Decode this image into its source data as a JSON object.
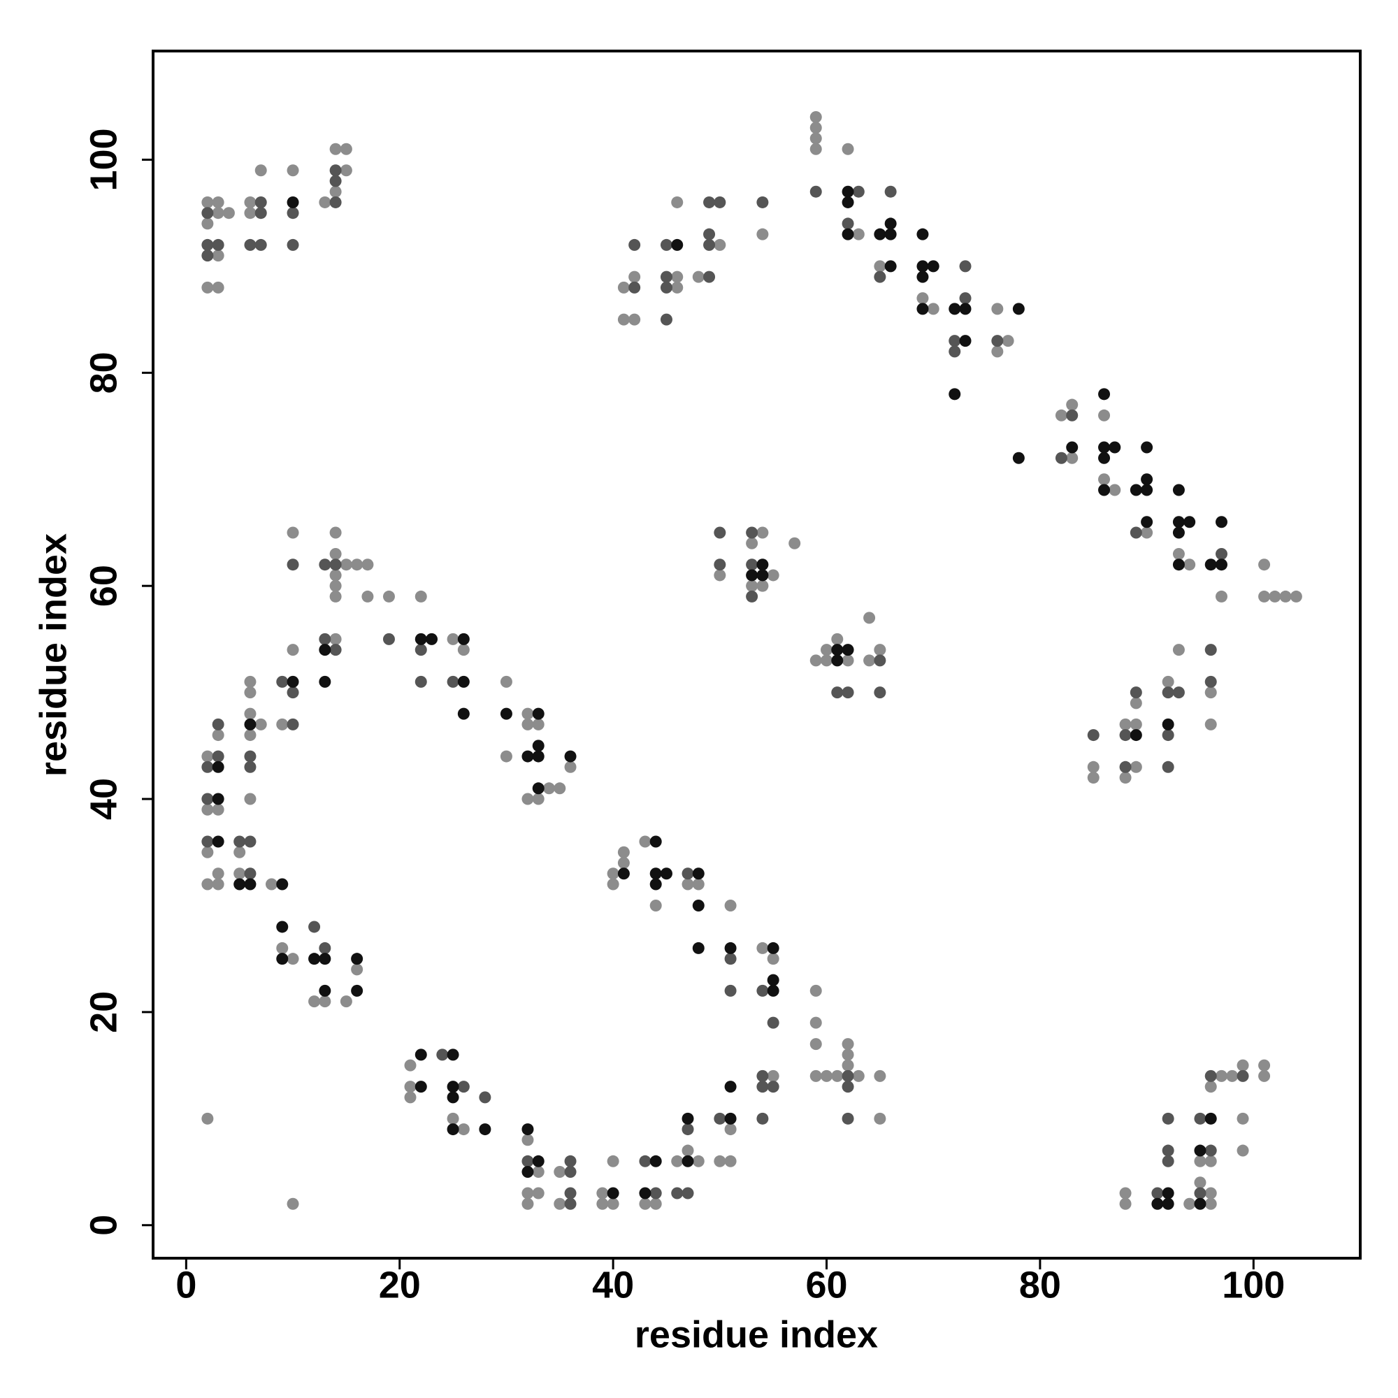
{
  "chart_data": {
    "type": "scatter",
    "x_label": "residue index",
    "y_label": "residue index",
    "xlim": [
      -3.1,
      110
    ],
    "ylim": [
      -3.1,
      110.2
    ],
    "xticks": [
      0,
      20,
      40,
      60,
      80,
      100
    ],
    "yticks": [
      0,
      20,
      40,
      60,
      80,
      100
    ],
    "grid": false,
    "series": [
      {
        "color": "#8c8c8c",
        "x": [
          2,
          3,
          3,
          4,
          2,
          3,
          2,
          3,
          6,
          6,
          7,
          10,
          13,
          14,
          15,
          14,
          15,
          41,
          42,
          41,
          42,
          46,
          46,
          46,
          50,
          48,
          54,
          59,
          59,
          59,
          59,
          62,
          63,
          65,
          69,
          70,
          76,
          77,
          76,
          82,
          83,
          83,
          86,
          86,
          87,
          90,
          93,
          94,
          97,
          101,
          101,
          102,
          103,
          104,
          50,
          54,
          53,
          53,
          54,
          55,
          57,
          59,
          60,
          60,
          61,
          62,
          64,
          64,
          65,
          85,
          85,
          88,
          89,
          89,
          89,
          88,
          92,
          93,
          96,
          96,
          10,
          14,
          14,
          14,
          14,
          14,
          15,
          16,
          17,
          17,
          19,
          22,
          14,
          10,
          25,
          26,
          6,
          6,
          6,
          7,
          6,
          9,
          3,
          2,
          2,
          3,
          6,
          2,
          5,
          3,
          2,
          3,
          5,
          8,
          9,
          10,
          16,
          12,
          13,
          15,
          30,
          32,
          32,
          33,
          30,
          36,
          34,
          35,
          32,
          33,
          40,
          41,
          41,
          40,
          43,
          44,
          47,
          48,
          51,
          54,
          55,
          59,
          59,
          59,
          59,
          60,
          61,
          62,
          62,
          62,
          63,
          65,
          65,
          55,
          21,
          21,
          21,
          25,
          26,
          32,
          33,
          35,
          32,
          33,
          32,
          35,
          39,
          39,
          40,
          40,
          43,
          44,
          46,
          48,
          47,
          51,
          50,
          51,
          88,
          88,
          94,
          95,
          96,
          96,
          95,
          96,
          96,
          97,
          98,
          99,
          99,
          99,
          101,
          101,
          2,
          10
        ],
        "y": [
          96,
          96,
          95,
          95,
          94,
          91,
          88,
          88,
          96,
          95,
          99,
          99,
          96,
          97,
          99,
          101,
          101,
          88,
          89,
          85,
          85,
          89,
          88,
          96,
          92,
          89,
          93,
          104,
          103,
          102,
          101,
          101,
          93,
          90,
          87,
          86,
          86,
          83,
          82,
          76,
          77,
          72,
          76,
          70,
          69,
          65,
          63,
          62,
          59,
          62,
          59,
          59,
          59,
          59,
          61,
          65,
          64,
          60,
          60,
          61,
          64,
          53,
          54,
          53,
          55,
          53,
          57,
          53,
          54,
          43,
          42,
          47,
          47,
          49,
          43,
          42,
          51,
          54,
          50,
          47,
          65,
          65,
          63,
          61,
          60,
          59,
          62,
          62,
          62,
          59,
          59,
          59,
          55,
          54,
          55,
          54,
          51,
          50,
          48,
          47,
          46,
          47,
          46,
          44,
          39,
          39,
          40,
          35,
          35,
          33,
          32,
          32,
          33,
          32,
          26,
          25,
          24,
          21,
          21,
          21,
          51,
          48,
          47,
          47,
          44,
          43,
          41,
          41,
          40,
          40,
          33,
          34,
          35,
          32,
          36,
          30,
          32,
          32,
          30,
          26,
          25,
          22,
          19,
          17,
          14,
          14,
          14,
          15,
          16,
          17,
          14,
          14,
          10,
          14,
          15,
          13,
          12,
          10,
          9,
          8,
          5,
          5,
          3,
          3,
          2,
          2,
          3,
          2,
          2,
          6,
          2,
          2,
          6,
          6,
          7,
          9,
          6,
          6,
          3,
          2,
          2,
          4,
          3,
          2,
          6,
          6,
          13,
          14,
          14,
          15,
          10,
          7,
          15,
          14,
          10,
          2
        ]
      },
      {
        "color": "#555555",
        "x": [
          2,
          2,
          3,
          2,
          7,
          7,
          6,
          7,
          10,
          10,
          14,
          14,
          14,
          42,
          42,
          45,
          45,
          45,
          45,
          49,
          50,
          49,
          49,
          49,
          54,
          59,
          63,
          62,
          66,
          65,
          73,
          73,
          72,
          72,
          76,
          83,
          82,
          89,
          97,
          50,
          50,
          53,
          53,
          53,
          61,
          62,
          65,
          65,
          85,
          88,
          89,
          88,
          92,
          93,
          92,
          92,
          96,
          96,
          10,
          13,
          14,
          13,
          14,
          19,
          22,
          22,
          25,
          9,
          10,
          10,
          3,
          3,
          2,
          6,
          6,
          2,
          2,
          5,
          6,
          6,
          12,
          13,
          47,
          51,
          51,
          54,
          55,
          62,
          62,
          62,
          54,
          54,
          55,
          54,
          24,
          26,
          28,
          32,
          36,
          36,
          36,
          36,
          43,
          44,
          47,
          46,
          47,
          50,
          91,
          92,
          92,
          92,
          95,
          95,
          96,
          96,
          99
        ],
        "y": [
          95,
          92,
          92,
          91,
          96,
          95,
          92,
          92,
          95,
          92,
          96,
          98,
          99,
          88,
          92,
          92,
          89,
          88,
          85,
          96,
          96,
          93,
          92,
          89,
          96,
          97,
          97,
          94,
          97,
          89,
          87,
          90,
          83,
          82,
          83,
          76,
          72,
          65,
          63,
          65,
          62,
          65,
          62,
          59,
          50,
          50,
          53,
          50,
          46,
          46,
          50,
          43,
          50,
          50,
          46,
          43,
          54,
          51,
          62,
          62,
          62,
          55,
          54,
          55,
          54,
          51,
          51,
          51,
          50,
          47,
          47,
          44,
          43,
          44,
          43,
          40,
          36,
          36,
          36,
          33,
          28,
          26,
          33,
          25,
          22,
          22,
          19,
          14,
          13,
          10,
          14,
          13,
          13,
          10,
          16,
          13,
          12,
          6,
          6,
          5,
          3,
          2,
          6,
          3,
          9,
          3,
          3,
          10,
          3,
          10,
          7,
          6,
          3,
          10,
          7,
          14,
          14
        ]
      },
      {
        "color": "#111111",
        "x": [
          10,
          62,
          62,
          62,
          65,
          66,
          66,
          66,
          69,
          69,
          70,
          69,
          69,
          72,
          73,
          73,
          72,
          78,
          78,
          83,
          86,
          86,
          87,
          86,
          86,
          90,
          89,
          90,
          90,
          90,
          93,
          93,
          94,
          93,
          93,
          96,
          97,
          97,
          46,
          54,
          53,
          54,
          61,
          62,
          61,
          89,
          92,
          13,
          13,
          22,
          23,
          26,
          26,
          26,
          10,
          6,
          3,
          3,
          3,
          5,
          6,
          9,
          9,
          9,
          12,
          13,
          16,
          13,
          16,
          30,
          33,
          32,
          33,
          33,
          36,
          33,
          41,
          44,
          44,
          45,
          44,
          48,
          48,
          48,
          51,
          55,
          55,
          55,
          22,
          22,
          25,
          25,
          25,
          25,
          28,
          32,
          33,
          32,
          40,
          44,
          43,
          47,
          47,
          51,
          51,
          92,
          91,
          92,
          95,
          96,
          95
        ],
        "y": [
          96,
          97,
          96,
          93,
          93,
          93,
          94,
          90,
          93,
          90,
          90,
          89,
          86,
          86,
          86,
          83,
          78,
          86,
          72,
          73,
          78,
          73,
          73,
          72,
          69,
          73,
          69,
          69,
          70,
          66,
          69,
          66,
          66,
          65,
          62,
          62,
          62,
          66,
          92,
          62,
          61,
          61,
          54,
          54,
          53,
          46,
          47,
          54,
          51,
          55,
          55,
          55,
          51,
          48,
          51,
          47,
          43,
          40,
          36,
          32,
          32,
          32,
          28,
          25,
          25,
          25,
          25,
          22,
          22,
          48,
          48,
          44,
          44,
          45,
          44,
          41,
          33,
          36,
          33,
          33,
          32,
          33,
          30,
          26,
          26,
          26,
          22,
          23,
          16,
          13,
          16,
          13,
          12,
          9,
          9,
          9,
          6,
          5,
          3,
          6,
          3,
          6,
          10,
          10,
          13,
          3,
          2,
          2,
          2,
          10,
          7
        ]
      }
    ]
  }
}
